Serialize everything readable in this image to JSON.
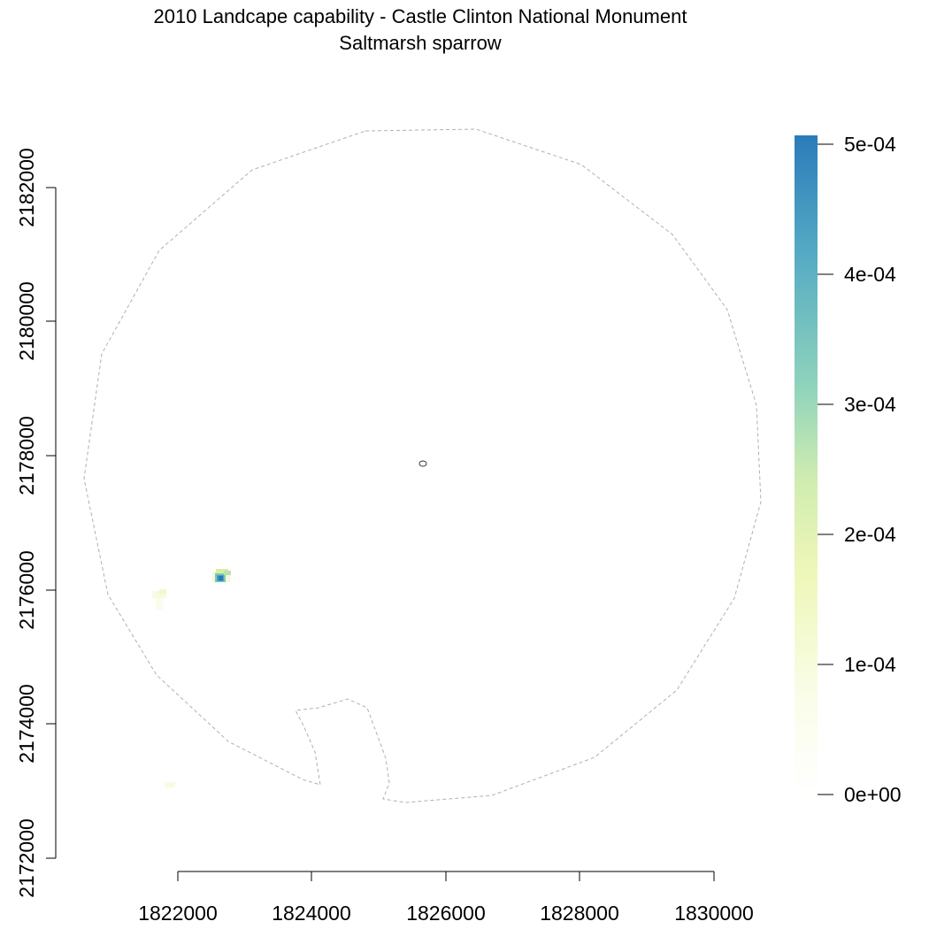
{
  "title": {
    "line1": "2010 Landcape capability - Castle Clinton National Monument",
    "line2": "Saltmarsh sparrow"
  },
  "map": {
    "x_ticks": [
      "1822000",
      "1824000",
      "1826000",
      "1828000",
      "1830000"
    ],
    "x_tick_values": [
      1822000,
      1824000,
      1826000,
      1828000,
      1830000
    ],
    "y_ticks": [
      "2172000",
      "2174000",
      "2176000",
      "2178000",
      "2180000",
      "2182000"
    ],
    "y_tick_values": [
      2172000,
      2174000,
      2176000,
      2178000,
      2180000,
      2182000
    ],
    "xlim": [
      1820450,
      1830850
    ],
    "ylim": [
      2172000,
      2182950
    ],
    "boundary_color": "#b0b0b0",
    "monument_outline_color": "#333333"
  },
  "legend": {
    "tick_labels": [
      "0e+00",
      "1e-04",
      "2e-04",
      "3e-04",
      "4e-04",
      "5e-04"
    ],
    "tick_values": [
      0,
      0.0001,
      0.0002,
      0.0003,
      0.0004,
      0.0005
    ],
    "colors": [
      "#ffffff",
      "#f2f9d0",
      "#e0f4a3",
      "#a8ddb5",
      "#6cc4be",
      "#3a94c2",
      "#2b7bba"
    ]
  }
}
